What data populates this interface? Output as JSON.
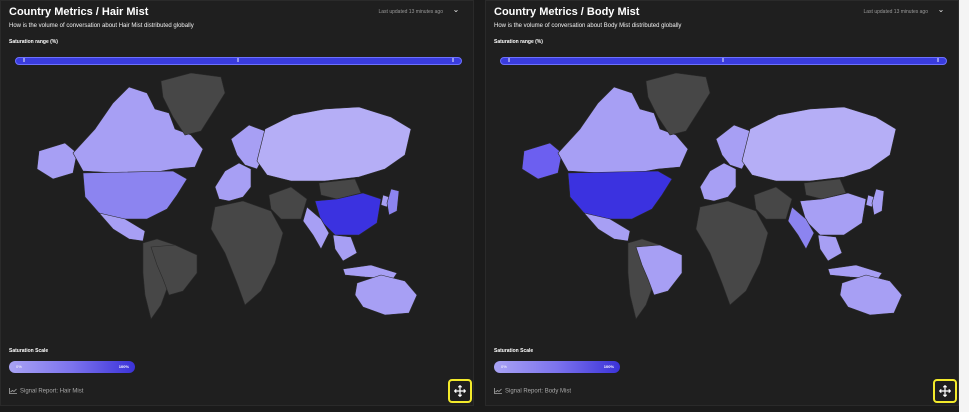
{
  "colors": {
    "no_data": "#474747",
    "low": "#b5aef6",
    "light": "#a79ff4",
    "mid": "#8c84f0",
    "medium_high": "#6c5ff0",
    "high": "#3b32e0",
    "accent_border": "#f3ea2b"
  },
  "panels": [
    {
      "title": "Country Metrics / Hair Mist",
      "last_updated": "Last updated 13 minutes ago",
      "subtitle": "How is the volume of conversation about Hair Mist distributed globally",
      "range_label": "Saturation range (%)",
      "scale_label": "Saturation Scale",
      "scale_min": "0%",
      "scale_max": "100%",
      "report": "Signal Report: Hair Mist",
      "levels": {
        "canada": "light",
        "alaska": "light",
        "usa": "mid",
        "mexico": "light",
        "greenland": "no_data",
        "south_america": "no_data",
        "brazil": "no_data",
        "europe_west": "light",
        "europe_east": "light",
        "russia": "low",
        "africa": "no_data",
        "middle_east": "no_data",
        "india": "light",
        "china": "high",
        "mongolia": "no_data",
        "se_asia": "light",
        "japan": "mid",
        "australia": "light",
        "indonesia": "light",
        "korea": "light"
      }
    },
    {
      "title": "Country Metrics / Body Mist",
      "last_updated": "Last updated 13 minutes ago",
      "subtitle": "How is the volume of conversation about Body Mist distributed globally",
      "range_label": "Saturation range (%)",
      "scale_label": "Saturation Scale",
      "scale_min": "0%",
      "scale_max": "100%",
      "report": "Signal Report: Body Mist",
      "levels": {
        "canada": "light",
        "alaska": "medium_high",
        "usa": "high",
        "mexico": "light",
        "greenland": "no_data",
        "south_america": "no_data",
        "brazil": "light",
        "europe_west": "light",
        "europe_east": "light",
        "russia": "low",
        "africa": "no_data",
        "middle_east": "no_data",
        "india": "mid",
        "china": "light",
        "mongolia": "no_data",
        "se_asia": "light",
        "japan": "light",
        "australia": "light",
        "indonesia": "light",
        "korea": "light"
      }
    }
  ]
}
